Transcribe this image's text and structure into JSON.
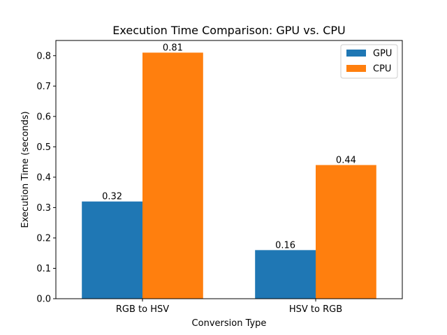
{
  "chart_data": {
    "type": "bar",
    "title": "Execution Time Comparison: GPU vs. CPU",
    "xlabel": "Conversion Type",
    "ylabel": "Execution Time (seconds)",
    "categories": [
      "RGB to HSV",
      "HSV to RGB"
    ],
    "series": [
      {
        "name": "GPU",
        "values": [
          0.32,
          0.16
        ],
        "labels": [
          "0.32",
          "0.16"
        ],
        "color": "#1f77b4"
      },
      {
        "name": "CPU",
        "values": [
          0.81,
          0.44
        ],
        "labels": [
          "0.81",
          "0.44"
        ],
        "color": "#ff7f0e"
      }
    ],
    "ylim": [
      0,
      0.85
    ],
    "yticks": [
      "0.0",
      "0.1",
      "0.2",
      "0.3",
      "0.4",
      "0.5",
      "0.6",
      "0.7",
      "0.8"
    ],
    "grid": false,
    "legend_position": "top-right"
  }
}
